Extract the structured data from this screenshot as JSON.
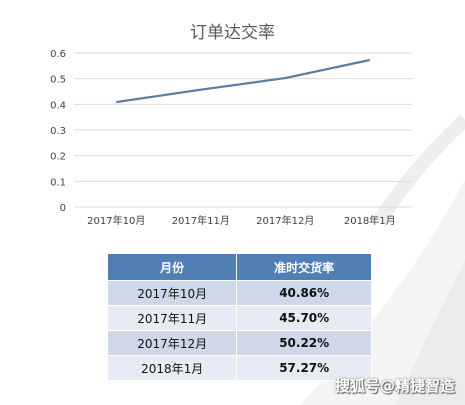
{
  "chart_data": {
    "type": "line",
    "title": "订单达交率",
    "categories": [
      "2017年10月",
      "2017年11月",
      "2017年12月",
      "2018年1月"
    ],
    "values": [
      0.4086,
      0.457,
      0.5022,
      0.5727
    ],
    "ylim": [
      0,
      0.6
    ],
    "yticks": [
      "0",
      "0.1",
      "0.2",
      "0.3",
      "0.4",
      "0.5",
      "0.6"
    ],
    "grid": true,
    "line_color": "#5b7da3"
  },
  "table": {
    "headers": [
      "月份",
      "准时交货率"
    ],
    "rows": [
      [
        "2017年10月",
        "40.86%"
      ],
      [
        "2017年11月",
        "45.70%"
      ],
      [
        "2017年12月",
        "50.22%"
      ],
      [
        "2018年1月",
        "57.27%"
      ]
    ],
    "header_color": "#4f7fb5"
  },
  "watermark": "搜狐号@精捷智造"
}
